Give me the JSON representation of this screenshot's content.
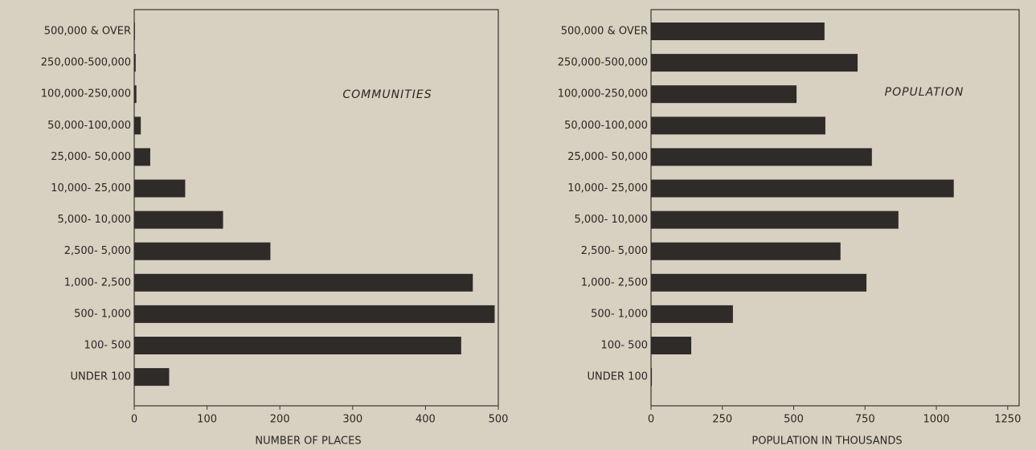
{
  "chart_data": [
    {
      "type": "bar",
      "orientation": "horizontal",
      "title": "COMMUNITIES",
      "x_label": "NUMBER OF PLACES",
      "categories": [
        "500,000 & OVER",
        "250,000-500,000",
        "100,000-250,000",
        "50,000-100,000",
        "25,000- 50,000",
        "10,000- 25,000",
        "5,000- 10,000",
        "2,500- 5,000",
        "1,000- 2,500",
        "500- 1,000",
        "100- 500",
        "UNDER 100"
      ],
      "values": [
        1,
        2,
        3,
        9,
        22,
        70,
        122,
        187,
        465,
        495,
        449,
        48
      ],
      "color": "#2f2b29",
      "xlim": [
        0,
        500
      ],
      "xticks": [
        0,
        100,
        200,
        300,
        400,
        500
      ]
    },
    {
      "type": "bar",
      "orientation": "horizontal",
      "title": "POPULATION",
      "x_label": "POPULATION IN THOUSANDS",
      "categories": [
        "500,000 & OVER",
        "250,000-500,000",
        "100,000-250,000",
        "50,000-100,000",
        "25,000- 50,000",
        "10,000- 25,000",
        "5,000- 10,000",
        "2,500- 5,000",
        "1,000- 2,500",
        "500- 1,000",
        "100- 500",
        "UNDER 100"
      ],
      "values": [
        608,
        724,
        510,
        611,
        774,
        1061,
        867,
        664,
        755,
        287,
        141,
        3
      ],
      "color": "#2f2b29",
      "xlim": [
        0,
        1290
      ],
      "xticks": [
        0,
        250,
        500,
        750,
        1000,
        1250
      ]
    }
  ]
}
